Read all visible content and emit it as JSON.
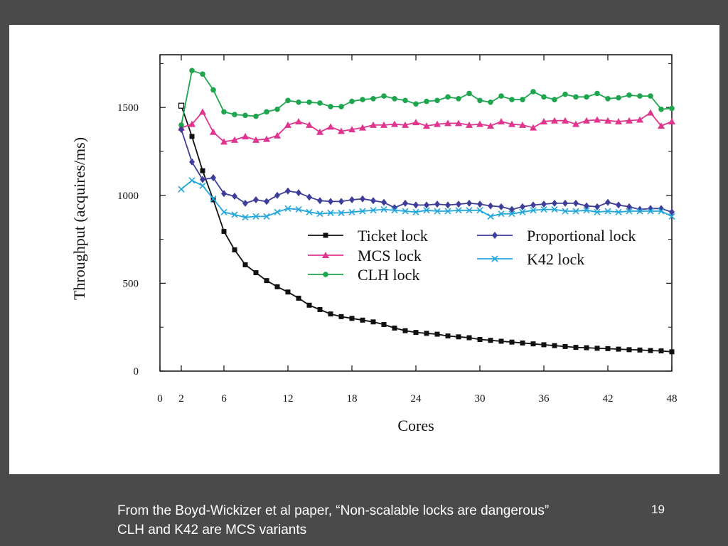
{
  "chart_data": {
    "type": "line",
    "xlabel": "Cores",
    "ylabel": "Throughput (acquires/ms)",
    "xlim": [
      0,
      48
    ],
    "ylim": [
      0,
      1800
    ],
    "xticks": [
      "0",
      "2",
      "6",
      "12",
      "18",
      "24",
      "30",
      "36",
      "42",
      "48"
    ],
    "yticks": [
      "0",
      "500",
      "1000",
      "1500"
    ],
    "x": [
      2,
      3,
      4,
      5,
      6,
      7,
      8,
      9,
      10,
      11,
      12,
      13,
      14,
      15,
      16,
      17,
      18,
      19,
      20,
      21,
      22,
      23,
      24,
      25,
      26,
      27,
      28,
      29,
      30,
      31,
      32,
      33,
      34,
      35,
      36,
      37,
      38,
      39,
      40,
      41,
      42,
      43,
      44,
      45,
      46,
      47,
      48
    ],
    "series": [
      {
        "name": "Ticket lock",
        "color": "#111111",
        "marker": "square",
        "values": [
          1510,
          1335,
          1140,
          975,
          795,
          690,
          605,
          560,
          515,
          480,
          450,
          415,
          375,
          350,
          325,
          310,
          300,
          290,
          280,
          265,
          245,
          230,
          220,
          215,
          210,
          200,
          195,
          190,
          180,
          175,
          170,
          165,
          160,
          155,
          150,
          145,
          140,
          135,
          133,
          130,
          128,
          125,
          122,
          120,
          117,
          115,
          110
        ]
      },
      {
        "name": "MCS lock",
        "color": "#e0358f",
        "marker": "triangle",
        "values": [
          1385,
          1405,
          1475,
          1360,
          1305,
          1315,
          1335,
          1315,
          1320,
          1340,
          1400,
          1420,
          1400,
          1360,
          1390,
          1365,
          1375,
          1385,
          1400,
          1400,
          1405,
          1400,
          1415,
          1395,
          1405,
          1410,
          1410,
          1400,
          1405,
          1395,
          1420,
          1405,
          1400,
          1385,
          1420,
          1425,
          1425,
          1405,
          1425,
          1430,
          1425,
          1420,
          1425,
          1430,
          1470,
          1395,
          1420
        ]
      },
      {
        "name": "CLH lock",
        "color": "#1ea64e",
        "marker": "circle",
        "values": [
          1400,
          1710,
          1690,
          1600,
          1475,
          1460,
          1455,
          1450,
          1475,
          1490,
          1540,
          1530,
          1530,
          1525,
          1505,
          1505,
          1535,
          1545,
          1550,
          1565,
          1550,
          1540,
          1520,
          1535,
          1540,
          1560,
          1550,
          1580,
          1540,
          1530,
          1565,
          1545,
          1545,
          1590,
          1560,
          1545,
          1575,
          1560,
          1560,
          1580,
          1550,
          1555,
          1570,
          1565,
          1565,
          1490,
          1495
        ]
      },
      {
        "name": "Proportional lock",
        "color": "#3e3e9a",
        "marker": "diamond",
        "values": [
          1375,
          1190,
          1090,
          1100,
          1010,
          995,
          955,
          975,
          965,
          1000,
          1025,
          1015,
          990,
          970,
          965,
          965,
          975,
          980,
          970,
          960,
          930,
          955,
          945,
          945,
          950,
          945,
          950,
          955,
          950,
          940,
          935,
          920,
          935,
          945,
          950,
          955,
          955,
          955,
          940,
          935,
          960,
          945,
          935,
          920,
          925,
          925,
          905
        ]
      },
      {
        "name": "K42 lock",
        "color": "#22a6dc",
        "marker": "x",
        "values": [
          1035,
          1085,
          1055,
          980,
          905,
          890,
          875,
          880,
          880,
          905,
          925,
          920,
          905,
          895,
          900,
          900,
          905,
          910,
          915,
          920,
          915,
          910,
          905,
          915,
          910,
          910,
          915,
          915,
          915,
          880,
          895,
          895,
          905,
          915,
          920,
          920,
          910,
          910,
          915,
          905,
          910,
          905,
          910,
          910,
          910,
          910,
          880
        ]
      }
    ],
    "legend": "inside-center-right"
  },
  "footer": {
    "line1": "From the Boyd-Wickizer et al paper, “Non-scalable locks are dangerous”",
    "line2": "CLH and K42 are MCS variants"
  },
  "slide_number": "19"
}
